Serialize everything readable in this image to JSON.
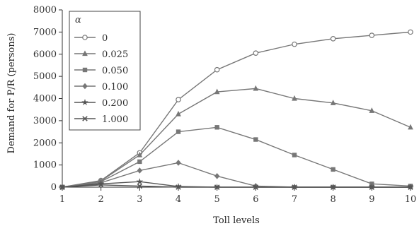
{
  "chart_data": {
    "type": "line",
    "xlabel": "Toll levels",
    "ylabel": "Demand for P/R (persons)",
    "x": [
      1,
      2,
      3,
      4,
      5,
      6,
      7,
      8,
      9,
      10
    ],
    "xticks": [
      "1",
      "2",
      "3",
      "4",
      "5",
      "6",
      "7",
      "8",
      "9",
      "10"
    ],
    "yticks": [
      "0",
      "1000",
      "2000",
      "3000",
      "4000",
      "5000",
      "6000",
      "7000",
      "8000"
    ],
    "xlim": [
      1,
      10
    ],
    "ylim": [
      0,
      8000
    ],
    "legend_title": "α",
    "legend_position": "top-left",
    "series": [
      {
        "name": "0",
        "marker": "circle",
        "color": "#777777",
        "values": [
          0,
          300,
          1550,
          3950,
          5300,
          6050,
          6450,
          6700,
          6850,
          7000
        ]
      },
      {
        "name": "0.025",
        "marker": "triangle",
        "color": "#777777",
        "values": [
          0,
          280,
          1450,
          3300,
          4300,
          4450,
          4000,
          3800,
          3450,
          2700
        ]
      },
      {
        "name": "0.050",
        "marker": "square",
        "color": "#777777",
        "values": [
          0,
          250,
          1150,
          2500,
          2700,
          2150,
          1450,
          800,
          150,
          50
        ]
      },
      {
        "name": "0.100",
        "marker": "diamond",
        "color": "#777777",
        "values": [
          0,
          200,
          750,
          1100,
          500,
          50,
          0,
          0,
          0,
          0
        ]
      },
      {
        "name": "0.200",
        "marker": "star",
        "color": "#555555",
        "values": [
          0,
          150,
          250,
          30,
          0,
          0,
          0,
          0,
          0,
          0
        ]
      },
      {
        "name": "1.000",
        "marker": "cross",
        "color": "#555555",
        "values": [
          0,
          100,
          50,
          0,
          0,
          0,
          0,
          0,
          0,
          0
        ]
      }
    ]
  }
}
